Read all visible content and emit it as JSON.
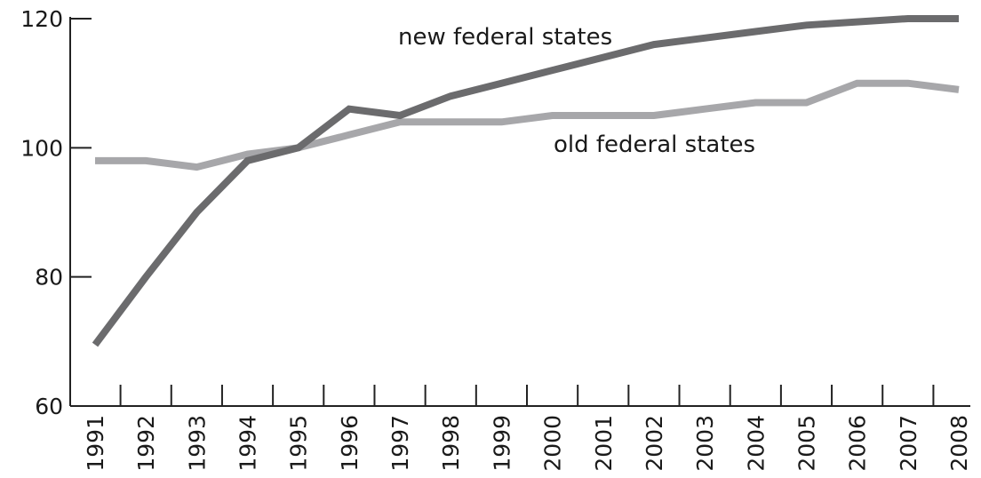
{
  "chart_data": {
    "type": "line",
    "x": [
      "1991",
      "1992",
      "1993",
      "1994",
      "1995",
      "1996",
      "1997",
      "1998",
      "1999",
      "2000",
      "2001",
      "2002",
      "2003",
      "2004",
      "2005",
      "2006",
      "2007",
      "2008"
    ],
    "series": [
      {
        "name": "new federal states",
        "color": "#6b6b6d",
        "values": [
          69.5,
          80,
          90,
          98,
          100,
          106,
          105,
          108,
          110,
          112,
          114,
          116,
          117,
          118,
          119,
          119.5,
          120,
          120
        ]
      },
      {
        "name": "old federal states",
        "color": "#a7a7aa",
        "values": [
          98,
          98,
          97,
          99,
          100,
          102,
          104,
          104,
          104,
          105,
          105,
          105,
          106,
          107,
          107,
          110,
          110,
          109
        ]
      }
    ],
    "yticks": [
      "60",
      "80",
      "100",
      "120"
    ],
    "ylim": [
      60,
      120
    ],
    "grid": false,
    "title": "",
    "xlabel": "",
    "ylabel": ""
  }
}
